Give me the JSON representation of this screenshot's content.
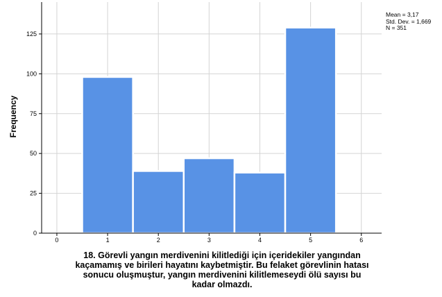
{
  "chart_data": {
    "type": "bar",
    "x": [
      1,
      2,
      3,
      4,
      5
    ],
    "values": [
      98,
      39,
      47,
      38,
      129
    ],
    "xticks": [
      "0",
      "1",
      "2",
      "3",
      "4",
      "5",
      "6"
    ],
    "yticks": [
      "0",
      "25",
      "50",
      "75",
      "100",
      "125"
    ],
    "xlim": [
      -0.3,
      6.4
    ],
    "ylim": [
      0,
      145
    ],
    "ylabel": "Frequency",
    "xlabel_lines": [
      "18. Görevli yangın merdivenini kilitlediği için içeridekiler yangından",
      "kaçamamış ve birileri hayatını kaybetmiştir. Bu felaket görevlinin hatası",
      "sonucu oluşmuştur, yangın merdivenini kilitlemeseydi ölü sayısı bu",
      "kadar olmazdı."
    ],
    "stats": {
      "mean": "Mean = 3,17",
      "std_dev": "Std. Dev. = 1,669",
      "n": "N = 351"
    },
    "grid": true,
    "legend": "none",
    "colors": {
      "bar": "#5892e5",
      "bar_edge": "#ffffff",
      "grid": "#d4d4d4",
      "axis": "#000000"
    }
  }
}
